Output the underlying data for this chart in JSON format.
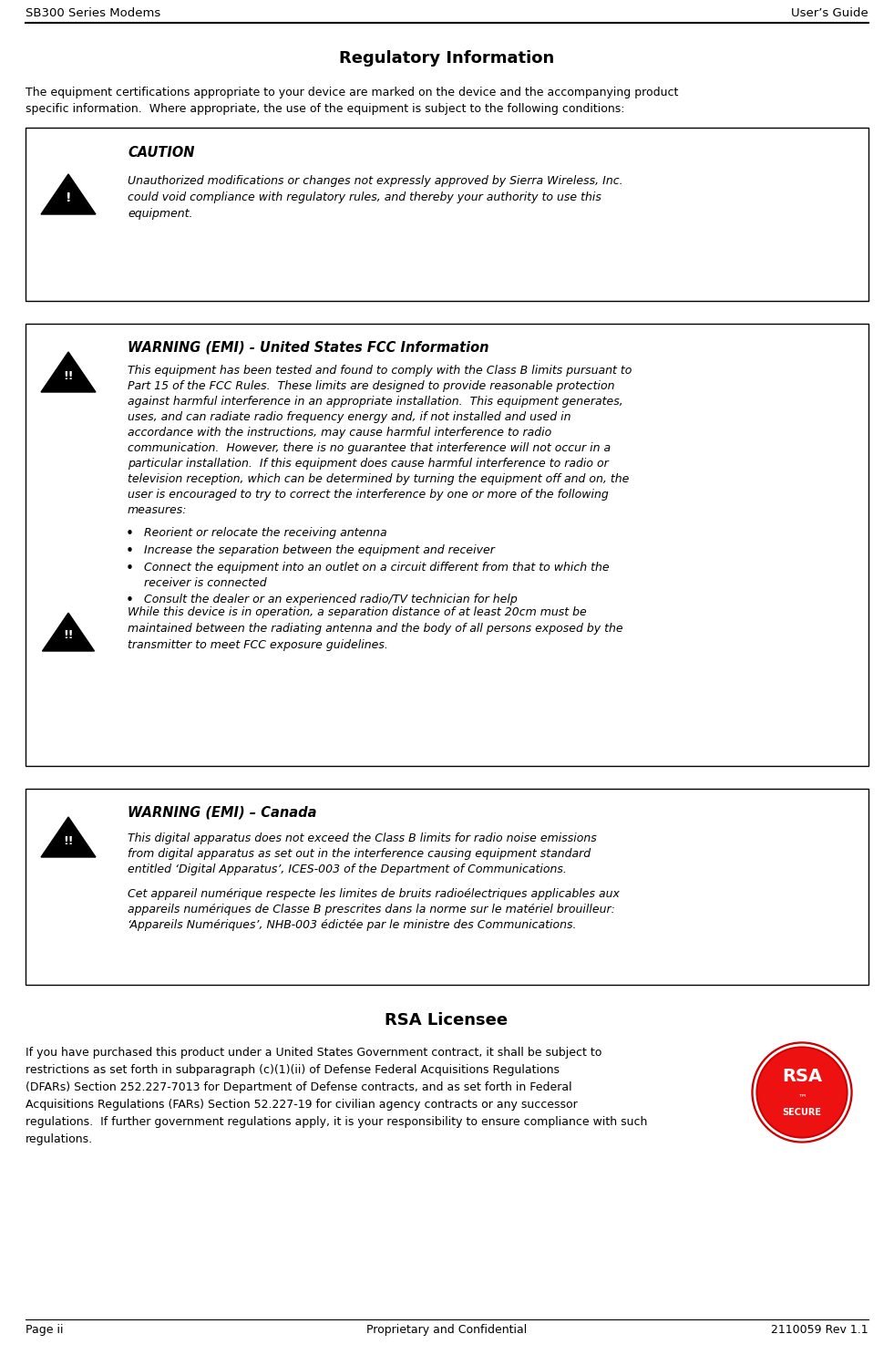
{
  "page_width": 9.81,
  "page_height": 14.97,
  "dpi": 100,
  "bg_color": "#ffffff",
  "header_left": "SB300 Series Modems",
  "header_right": "User’s Guide",
  "footer_left": "Page ii",
  "footer_center": "Proprietary and Confidential",
  "footer_right": "2110059 Rev 1.1",
  "main_title": "Regulatory Information",
  "intro_line1": "The equipment certifications appropriate to your device are marked on the device and the accompanying product",
  "intro_line2": "specific information.  Where appropriate, the use of the equipment is subject to the following conditions:",
  "rsa_title": "RSA Licensee",
  "rsa_line1": "If you have purchased this product under a United States Government contract, it shall be subject to",
  "rsa_line2": "restrictions as set forth in subparagraph (c)(1)(ii) of Defense Federal Acquisitions Regulations",
  "rsa_line3": "(DFARs) Section 252.227-7013 for Department of Defense contracts, and as set forth in Federal",
  "rsa_line4": "Acquisitions Regulations (FARs) Section 52.227-19 for civilian agency contracts or any successor",
  "rsa_line5": "regulations.  If further government regulations apply, it is your responsibility to ensure compliance with such",
  "rsa_line6": "regulations.",
  "caution_label": "CAUTION",
  "caution_text_line1": "Unauthorized modifications or changes not expressly approved by Sierra Wireless, Inc.",
  "caution_text_line2": "could void compliance with regulatory rules, and thereby your authority to use this",
  "caution_text_line3": "equipment.",
  "fcc_label": "WARNING (EMI) - United States FCC Information",
  "fcc_text": "This equipment has been tested and found to comply with the Class B limits pursuant to\nPart 15 of the FCC Rules.  These limits are designed to provide reasonable protection\nagainst harmful interference in an appropriate installation.  This equipment generates,\nuses, and can radiate radio frequency energy and, if not installed and used in\naccordance with the instructions, may cause harmful interference to radio\ncommunication.  However, there is no guarantee that interference will not occur in a\nparticular installation.  If this equipment does cause harmful interference to radio or\ntelevision reception, which can be determined by turning the equipment off and on, the\nuser is encouraged to try to correct the interference by one or more of the following\nmeasures:",
  "fcc_bullets": [
    "Reorient or relocate the receiving antenna",
    "Increase the separation between the equipment and receiver",
    "Connect the equipment into an outlet on a circuit different from that to which the\nreceiver is connected",
    "Consult the dealer or an experienced radio/TV technician for help"
  ],
  "fcc_warning2": "While this device is in operation, a separation distance of at least 20cm must be\nmaintained between the radiating antenna and the body of all persons exposed by the\ntransmitter to meet FCC exposure guidelines.",
  "canada_label": "WARNING (EMI) – Canada",
  "canada_text1": "This digital apparatus does not exceed the Class B limits for radio noise emissions\nfrom digital apparatus as set out in the interference causing equipment standard\nentitled ‘Digital Apparatus’, ICES-003 of the Department of Communications.",
  "canada_text2": "Cet appareil numérique respecte les limites de bruits radioélectriques applicables aux\nappareils numériques de Classe B prescrites dans la norme sur le matériel brouilleur:\n‘Appareils Numériques’, NHB-003 édictée par le ministre des Communications.",
  "header_font_size": 9.5,
  "title_font_size": 13,
  "body_font_size": 9,
  "label_font_size": 10.5,
  "footer_font_size": 9
}
